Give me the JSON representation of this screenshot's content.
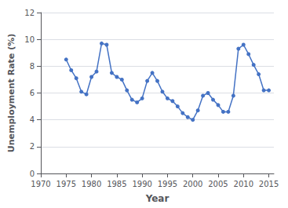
{
  "chart_data": {
    "type": "line",
    "x": [
      1975,
      1976,
      1977,
      1978,
      1979,
      1980,
      1981,
      1982,
      1983,
      1984,
      1985,
      1986,
      1987,
      1988,
      1989,
      1990,
      1991,
      1992,
      1993,
      1994,
      1995,
      1996,
      1997,
      1998,
      1999,
      2000,
      2001,
      2002,
      2003,
      2004,
      2005,
      2006,
      2007,
      2008,
      2009,
      2010,
      2011,
      2012,
      2013,
      2014,
      2015
    ],
    "values": [
      8.5,
      7.7,
      7.1,
      6.1,
      5.9,
      7.2,
      7.6,
      9.7,
      9.6,
      7.5,
      7.2,
      7.0,
      6.2,
      5.5,
      5.3,
      5.6,
      6.9,
      7.5,
      6.9,
      6.1,
      5.6,
      5.4,
      5.0,
      4.5,
      4.2,
      4.0,
      4.7,
      5.8,
      6.0,
      5.5,
      5.1,
      4.6,
      4.6,
      5.8,
      9.3,
      9.6,
      8.9,
      8.1,
      7.4,
      6.2,
      6.2
    ],
    "color": "#4472c4",
    "marker": "circle",
    "xlabel": "Year",
    "ylabel": "Unemployment Rate (%)",
    "xlim": [
      1970,
      2016
    ],
    "ylim": [
      0,
      12
    ],
    "xticks": [
      1970,
      1975,
      1980,
      1985,
      1990,
      1995,
      2000,
      2005,
      2010,
      2015
    ],
    "yticks": [
      0,
      2,
      4,
      6,
      8,
      10,
      12
    ],
    "grid": true
  }
}
